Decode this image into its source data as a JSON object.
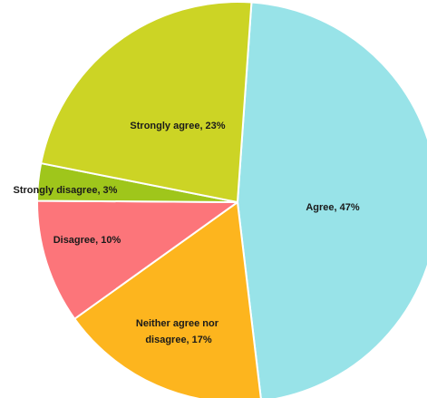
{
  "chart_data": {
    "type": "pie",
    "title": "",
    "legend": "none",
    "start_angle_deg": 4,
    "direction": "clockwise",
    "slices": [
      {
        "label": "Agree, 47%",
        "category": "Agree",
        "value": 47,
        "color": "#98E3E8"
      },
      {
        "label": "Neither agree nor disagree, 17%",
        "category": "Neither agree nor disagree",
        "value": 17,
        "color": "#FDB51E"
      },
      {
        "label": "Disagree, 10%",
        "category": "Disagree",
        "value": 10,
        "color": "#FC757A"
      },
      {
        "label": "Strongly disagree, 3%",
        "category": "Strongly disagree",
        "value": 3,
        "color": "#9FC61B"
      },
      {
        "label": "Strongly agree, 23%",
        "category": "Strongly agree",
        "value": 23,
        "color": "#CCD425"
      }
    ]
  }
}
